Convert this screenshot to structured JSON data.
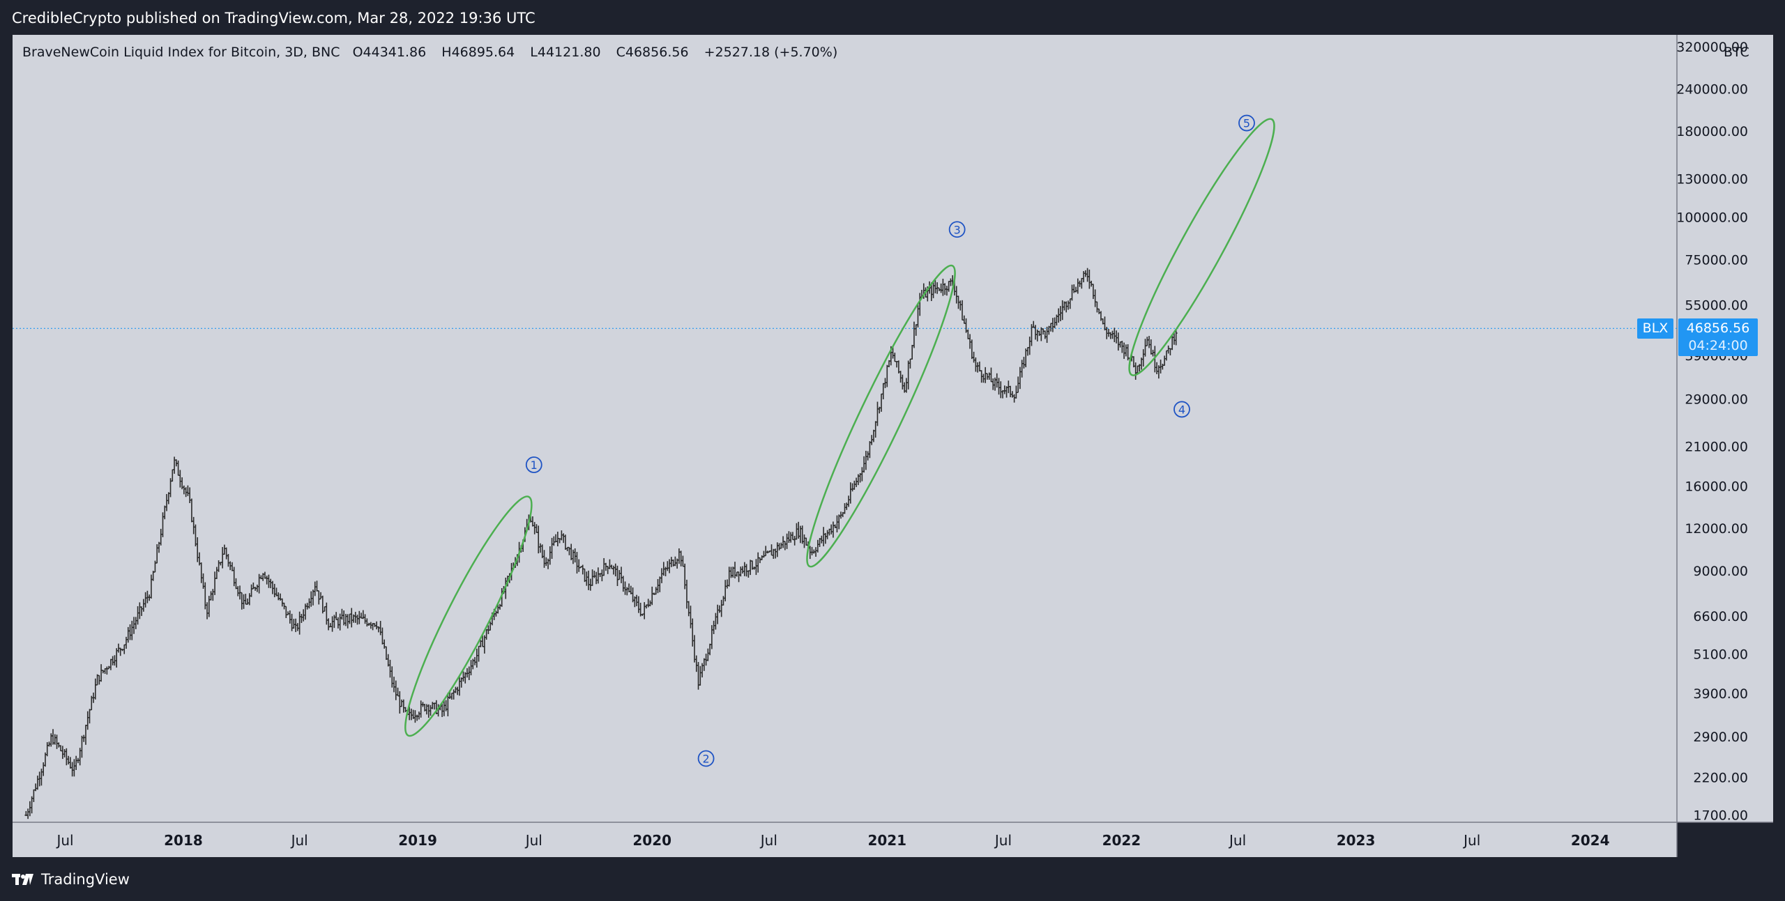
{
  "header": {
    "publish_text": "CredibleCrypto published on TradingView.com, Mar 28, 2022 19:36 UTC"
  },
  "legend": {
    "symbol_name": "BraveNewCoin Liquid Index for Bitcoin, 3D, BNC",
    "open_label": "O",
    "open_value": "44341.86",
    "high_label": "H",
    "high_value": "46895.64",
    "low_label": "L",
    "low_value": "44121.80",
    "close_label": "C",
    "close_value": "46856.56",
    "change": "+2527.18 (+5.70%)"
  },
  "price_scale": {
    "currency": "BTC",
    "tick_labels": [
      "320000.00",
      "240000.00",
      "180000.00",
      "130000.00",
      "100000.00",
      "75000.00",
      "55000.00",
      "39000.00",
      "29000.00",
      "21000.00",
      "16000.00",
      "12000.00",
      "9000.00",
      "6600.00",
      "5100.00",
      "3900.00",
      "2900.00",
      "2200.00",
      "1700.00"
    ]
  },
  "time_scale": {
    "tick_labels": [
      "Jul",
      "2018",
      "Jul",
      "2019",
      "Jul",
      "2020",
      "Jul",
      "2021",
      "Jul",
      "2022",
      "Jul",
      "2023",
      "Jul",
      "2024"
    ],
    "bold_labels": [
      "2018",
      "2019",
      "2020",
      "2021",
      "2022",
      "2023",
      "2024"
    ]
  },
  "current_price": {
    "symbol": "BLX",
    "price": "46856.56",
    "countdown": "04:24:00"
  },
  "footer": {
    "brand": "TradingView"
  },
  "colors": {
    "chart_bg": "#d1d4dc",
    "frame_bg": "#1e222d",
    "candle": "#2a2a2a",
    "ellipse": "#4caf50",
    "wave_label": "#1e53c4",
    "price_line": "#2196f3"
  },
  "chart_data": {
    "type": "line",
    "title": "BraveNewCoin Liquid Index for Bitcoin, 3D, BNC",
    "yscale": "log",
    "ylim": [
      1650,
      340000
    ],
    "xlim": [
      "2017-04-10",
      "2024-05-15"
    ],
    "grid": false,
    "series": [
      {
        "name": "BLX",
        "x": [
          "2017-05-01",
          "2017-06-10",
          "2017-07-15",
          "2017-08-20",
          "2017-10-01",
          "2017-11-10",
          "2017-12-17",
          "2018-01-10",
          "2018-02-06",
          "2018-03-05",
          "2018-04-06",
          "2018-05-05",
          "2018-06-25",
          "2018-07-25",
          "2018-08-15",
          "2018-09-20",
          "2018-10-30",
          "2018-11-25",
          "2018-12-15",
          "2019-01-15",
          "2019-02-08",
          "2019-04-02",
          "2019-05-15",
          "2019-06-26",
          "2019-07-17",
          "2019-08-10",
          "2019-09-25",
          "2019-10-26",
          "2019-12-17",
          "2020-01-15",
          "2020-02-14",
          "2020-03-13",
          "2020-04-30",
          "2020-06-15",
          "2020-07-27",
          "2020-08-17",
          "2020-09-05",
          "2020-10-21",
          "2020-11-30",
          "2021-01-08",
          "2021-01-28",
          "2021-02-21",
          "2021-03-13",
          "2021-04-14",
          "2021-05-19",
          "2021-06-22",
          "2021-07-20",
          "2021-08-15",
          "2021-09-07",
          "2021-10-20",
          "2021-11-10",
          "2021-12-04",
          "2022-01-10",
          "2022-01-24",
          "2022-02-10",
          "2022-02-24",
          "2022-03-10",
          "2022-03-28"
        ],
        "y": [
          1700,
          2900,
          2300,
          4300,
          5500,
          7800,
          19000,
          14500,
          6800,
          10500,
          7000,
          9000,
          6000,
          8200,
          6300,
          6500,
          6300,
          4000,
          3300,
          3600,
          3450,
          5000,
          7800,
          13000,
          9500,
          11500,
          8200,
          9500,
          6700,
          8700,
          10200,
          4200,
          8800,
          9500,
          11000,
          11800,
          10200,
          13000,
          19500,
          40000,
          31000,
          58000,
          61000,
          64000,
          36000,
          31500,
          30000,
          47000,
          45000,
          62000,
          68000,
          47000,
          40000,
          35000,
          44000,
          36000,
          38000,
          46856.56
        ]
      }
    ],
    "wave_labels": [
      "1",
      "2",
      "3",
      "4",
      "5"
    ]
  }
}
